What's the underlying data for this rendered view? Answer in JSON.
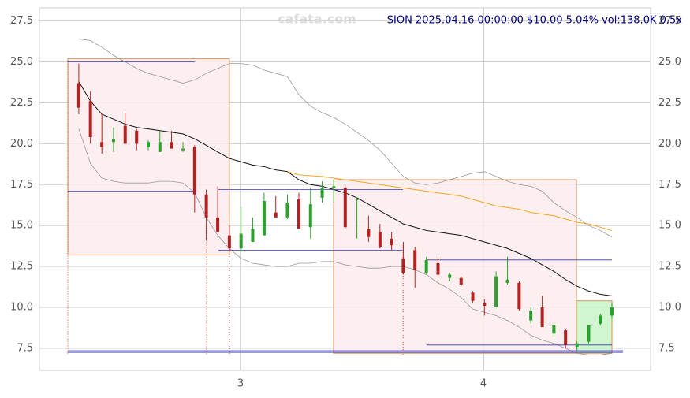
{
  "chart_data": {
    "type": "candlestick",
    "title": "SION 2025.04.16 00:00:00 $10.00 5.04% vol:138.0K 0.5x",
    "watermark": "cafata.com",
    "xlim": [
      2.172,
      4.688
    ],
    "ylim": [
      6.15,
      28.3
    ],
    "xticks": [
      3,
      4
    ],
    "yticks": [
      7.5,
      {
        "value": 10,
        "label": "10.0"
      },
      12.5,
      {
        "value": 15,
        "label": "15.0"
      },
      17.5,
      {
        "value": 20,
        "label": "20.0"
      },
      22.5,
      {
        "value": 25,
        "label": "25.0"
      },
      27.5
    ],
    "grid": true,
    "up_color": "#2ca02c",
    "down_color": "#b22222",
    "x": [
      2.334,
      2.382,
      2.429,
      2.477,
      2.525,
      2.572,
      2.62,
      2.668,
      2.716,
      2.763,
      2.811,
      2.859,
      2.906,
      2.954,
      3.002,
      3.05,
      3.097,
      3.145,
      3.193,
      3.24,
      3.288,
      3.336,
      3.384,
      3.431,
      3.479,
      3.527,
      3.574,
      3.622,
      3.67,
      3.718,
      3.765,
      3.813,
      3.861,
      3.908,
      3.956,
      4.004,
      4.052,
      4.099,
      4.147,
      4.195,
      4.242,
      4.29,
      4.338,
      4.385,
      4.433,
      4.481,
      4.529
    ],
    "open": [
      23.7,
      22.6,
      20.1,
      20.1,
      21.1,
      20.8,
      19.8,
      19.5,
      20.1,
      19.6,
      19.8,
      16.9,
      15.5,
      14.4,
      13.6,
      14.0,
      14.4,
      15.8,
      15.5,
      16.6,
      14.9,
      16.7,
      17.3,
      17.3,
      16.6,
      14.8,
      14.6,
      14.2,
      13.0,
      13.5,
      12.1,
      12.7,
      11.8,
      11.8,
      10.9,
      10.3,
      10.0,
      11.5,
      11.5,
      9.2,
      10.0,
      8.4,
      8.6,
      7.6,
      7.9,
      9.0,
      9.5
    ],
    "high": [
      24.9,
      23.2,
      21.8,
      21.0,
      21.9,
      20.9,
      20.2,
      20.8,
      20.8,
      20.1,
      19.9,
      17.2,
      17.4,
      15.0,
      16.1,
      15.5,
      17.0,
      16.8,
      16.9,
      17.0,
      17.3,
      17.7,
      17.8,
      17.4,
      16.7,
      15.6,
      15.1,
      14.6,
      14.0,
      13.7,
      13.1,
      13.1,
      12.1,
      11.9,
      11.0,
      10.5,
      12.2,
      13.1,
      11.6,
      10.0,
      10.7,
      9.0,
      8.7,
      7.9,
      8.9,
      9.6,
      10.3
    ],
    "low": [
      21.8,
      20.0,
      19.4,
      19.5,
      20.0,
      19.6,
      19.6,
      19.5,
      19.7,
      19.5,
      15.8,
      14.1,
      14.7,
      13.5,
      13.4,
      14.0,
      14.4,
      15.5,
      15.4,
      14.8,
      14.2,
      16.4,
      16.4,
      14.8,
      14.2,
      14.0,
      13.6,
      13.5,
      12.0,
      11.2,
      12.0,
      11.8,
      11.6,
      11.3,
      10.3,
      9.5,
      10.0,
      11.4,
      9.8,
      9.0,
      8.8,
      8.2,
      7.5,
      7.4,
      7.8,
      8.9,
      9.3
    ],
    "close": [
      22.2,
      20.4,
      19.8,
      20.3,
      20.0,
      20.0,
      20.1,
      20.1,
      19.7,
      19.7,
      16.9,
      15.5,
      14.6,
      13.6,
      14.5,
      14.8,
      16.5,
      15.5,
      16.4,
      14.8,
      16.3,
      17.3,
      17.4,
      14.9,
      16.6,
      14.3,
      13.7,
      13.8,
      12.1,
      12.3,
      12.9,
      12.0,
      12.0,
      11.4,
      10.4,
      10.1,
      11.9,
      11.7,
      9.9,
      9.8,
      8.8,
      8.9,
      7.7,
      7.8,
      8.9,
      9.5,
      10.0
    ],
    "series": [
      {
        "name": "MA",
        "color": "#111111",
        "values": [
          23.8,
          22.6,
          21.8,
          21.5,
          21.2,
          21.0,
          20.9,
          20.8,
          20.7,
          20.6,
          20.3,
          19.9,
          19.5,
          19.1,
          18.9,
          18.7,
          18.6,
          18.4,
          18.3,
          17.8,
          17.5,
          17.4,
          17.2,
          17.0,
          16.7,
          16.3,
          15.9,
          15.5,
          15.1,
          14.9,
          14.7,
          14.6,
          14.5,
          14.4,
          14.2,
          14.0,
          13.8,
          13.6,
          13.3,
          13.0,
          12.6,
          12.2,
          11.7,
          11.3,
          11.0,
          10.8,
          10.7
        ]
      },
      {
        "name": "MA long",
        "color": "#f5a623",
        "values": [
          null,
          null,
          null,
          null,
          null,
          null,
          null,
          null,
          null,
          null,
          null,
          null,
          null,
          null,
          null,
          null,
          null,
          null,
          18.3,
          18.1,
          18.05,
          18.0,
          17.9,
          17.8,
          17.7,
          17.6,
          17.5,
          17.4,
          17.3,
          17.2,
          17.1,
          17.0,
          16.9,
          16.8,
          16.6,
          16.4,
          16.2,
          16.1,
          16.0,
          15.8,
          15.7,
          15.6,
          15.4,
          15.2,
          15.1,
          14.9,
          14.7
        ]
      },
      {
        "name": "Upper band",
        "color": "#999999",
        "values": [
          26.4,
          26.3,
          25.9,
          25.4,
          25.0,
          24.6,
          24.3,
          24.1,
          23.9,
          23.7,
          23.9,
          24.3,
          24.6,
          24.9,
          24.9,
          24.8,
          24.5,
          24.3,
          24.1,
          23.0,
          22.3,
          21.9,
          21.6,
          21.2,
          20.7,
          20.2,
          19.6,
          18.8,
          18.0,
          17.6,
          17.5,
          17.6,
          17.8,
          18.0,
          18.2,
          18.3,
          18.0,
          17.7,
          17.5,
          17.4,
          17.1,
          16.4,
          15.9,
          15.5,
          15.0,
          14.7,
          14.3
        ]
      },
      {
        "name": "Lower band",
        "color": "#999999",
        "values": [
          20.9,
          18.8,
          17.9,
          17.7,
          17.6,
          17.6,
          17.6,
          17.7,
          17.7,
          17.6,
          17.0,
          15.5,
          14.4,
          13.6,
          13.0,
          12.7,
          12.6,
          12.5,
          12.5,
          12.7,
          12.7,
          12.8,
          12.8,
          12.6,
          12.5,
          12.4,
          12.4,
          12.5,
          12.5,
          12.3,
          12.0,
          11.5,
          11.1,
          10.6,
          9.9,
          9.7,
          9.5,
          9.2,
          8.8,
          8.3,
          8.0,
          7.8,
          7.5,
          7.2,
          7.1,
          7.1,
          7.2
        ]
      }
    ],
    "zones": [
      {
        "x": [
          2.289,
          2.954
        ],
        "y": [
          13.2,
          25.2
        ],
        "color": "#fdecec",
        "edge": "#d9935a"
      },
      {
        "x": [
          3.383,
          4.383
        ],
        "y": [
          7.2,
          17.8
        ],
        "color": "#fdecec",
        "edge": "#d9935a"
      },
      {
        "x": [
          4.383,
          4.529
        ],
        "y": [
          7.2,
          10.4
        ],
        "color": "#c8f5c8",
        "edge": "#d9935a"
      }
    ],
    "levels": [
      {
        "x": [
          2.289,
          2.812
        ],
        "y": 25.0
      },
      {
        "x": [
          2.289,
          2.812
        ],
        "y": 17.1
      },
      {
        "x": [
          2.909,
          3.669
        ],
        "y": 17.2
      },
      {
        "x": [
          2.909,
          3.669
        ],
        "y": 13.5
      },
      {
        "x": [
          3.766,
          4.529
        ],
        "y": 12.9
      },
      {
        "x": [
          3.766,
          4.529
        ],
        "y": 7.7
      },
      {
        "x": [
          2.289,
          4.575
        ],
        "y": 7.35
      },
      {
        "x": [
          2.289,
          4.575
        ],
        "y": 7.25
      }
    ],
    "level_color": "#3333cc",
    "signals": [
      {
        "x": 2.289,
        "y": 25.0
      },
      {
        "x": 2.86,
        "y": 16.0
      },
      {
        "x": 2.954,
        "y": 14.0
      },
      {
        "x": 3.669,
        "y": 13.8
      }
    ],
    "signal_color": "#c0392b"
  }
}
